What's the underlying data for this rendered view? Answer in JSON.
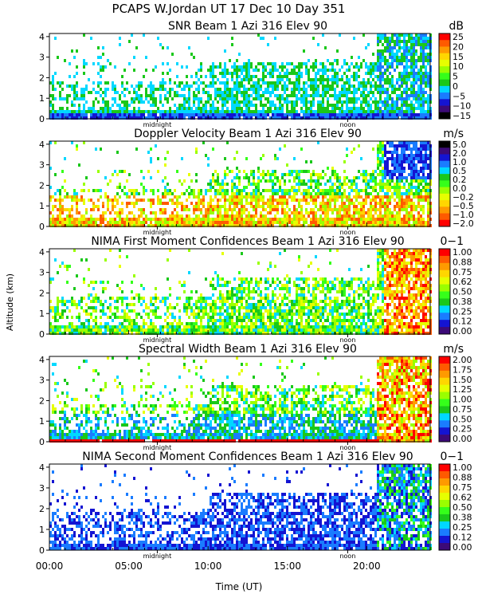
{
  "header": {
    "line1": "PCAPS W.Jordan UT  17 Dec 10 Day 351"
  },
  "shared_axes": {
    "xlabel": "Time (UT)",
    "ylabel": "Altitude (km)",
    "x_ticks": [
      "00:00",
      "05:00",
      "10:00",
      "15:00",
      "20:00"
    ],
    "x_tick_hours": [
      0,
      5,
      10,
      15,
      20
    ],
    "xlim_hours": [
      0,
      24
    ],
    "y_ticks": [
      "0",
      "1",
      "2",
      "3",
      "4"
    ],
    "ylim_km": [
      0,
      4.15
    ],
    "markers": [
      {
        "label": "midnight",
        "hour": 6.8
      },
      {
        "label": "noon",
        "hour": 18.8
      }
    ]
  },
  "chart_data": [
    {
      "type": "heatmap",
      "title": "SNR Beam 1 Azi 316 Elev 90",
      "unit": "dB",
      "colorbar_ticks": [
        "25",
        "20",
        "15",
        "10",
        "5",
        "0",
        "−5",
        "−10",
        "−15"
      ],
      "colorbar_colors": [
        "#ff0000",
        "#ff5a00",
        "#ff9a00",
        "#ffd600",
        "#e6ff00",
        "#9aff00",
        "#35ff1a",
        "#1ac81a",
        "#00d8ff",
        "#1a7cff",
        "#1414d2",
        "#3c0a78",
        "#000000"
      ],
      "scheme": "snr"
    },
    {
      "type": "heatmap",
      "title": "Doppler Velocity Beam 1 Azi 316 Elev 90",
      "unit": "m/s",
      "colorbar_ticks": [
        "5.0",
        "2.0",
        "1.0",
        "0.5",
        "0.2",
        "0.0",
        "−0.2",
        "−0.5",
        "−1.0",
        "−2.0"
      ],
      "colorbar_colors": [
        "#000000",
        "#3c0a78",
        "#1414d2",
        "#1a7cff",
        "#00d8ff",
        "#1ac81a",
        "#35ff1a",
        "#9aff00",
        "#e6ff00",
        "#ffd600",
        "#ff9a00",
        "#ff5a00",
        "#ff0000"
      ],
      "scheme": "doppler"
    },
    {
      "type": "heatmap",
      "title": "NIMA First Moment Confidences Beam 1 Azi 316 Elev 90",
      "unit": "0−1",
      "colorbar_ticks": [
        "1.00",
        "0.88",
        "0.75",
        "0.62",
        "0.50",
        "0.38",
        "0.25",
        "0.12",
        "0.00"
      ],
      "colorbar_colors": [
        "#ff0000",
        "#ff5a00",
        "#ff9a00",
        "#ffd600",
        "#e6ff00",
        "#9aff00",
        "#35ff1a",
        "#1ac81a",
        "#00d8ff",
        "#1a7cff",
        "#1414d2",
        "#3c0a78"
      ],
      "scheme": "conf1"
    },
    {
      "type": "heatmap",
      "title": "Spectral Width Beam 1 Azi 316 Elev 90",
      "unit": "m/s",
      "colorbar_ticks": [
        "2.00",
        "1.75",
        "1.50",
        "1.25",
        "1.00",
        "0.75",
        "0.50",
        "0.25",
        "0.00"
      ],
      "colorbar_colors": [
        "#ff0000",
        "#ff5a00",
        "#ff9a00",
        "#ffd600",
        "#e6ff00",
        "#9aff00",
        "#35ff1a",
        "#1ac81a",
        "#00d8ff",
        "#1a7cff",
        "#1414d2",
        "#3c0a78"
      ],
      "scheme": "width"
    },
    {
      "type": "heatmap",
      "title": "NIMA Second Moment Confidences Beam 1 Azi 316 Elev 90",
      "unit": "0−1",
      "colorbar_ticks": [
        "1.00",
        "0.88",
        "0.75",
        "0.62",
        "0.50",
        "0.38",
        "0.25",
        "0.12",
        "0.00"
      ],
      "colorbar_colors": [
        "#ff0000",
        "#ff5a00",
        "#ff9a00",
        "#ffd600",
        "#e6ff00",
        "#9aff00",
        "#35ff1a",
        "#1ac81a",
        "#00d8ff",
        "#1a7cff",
        "#1414d2",
        "#3c0a78"
      ],
      "scheme": "conf2"
    }
  ]
}
